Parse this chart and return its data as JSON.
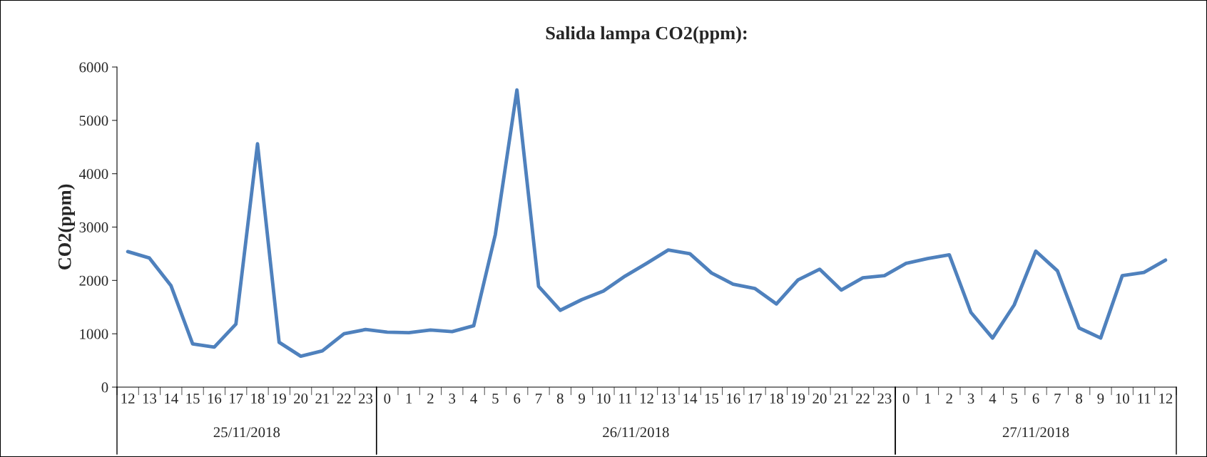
{
  "chart_data": {
    "type": "line",
    "title": "Salida lampa CO2(ppm):",
    "ylabel": "CO2(ppm)",
    "categories": [
      "12",
      "13",
      "14",
      "15",
      "16",
      "17",
      "18",
      "19",
      "20",
      "21",
      "22",
      "23",
      "0",
      "1",
      "2",
      "3",
      "4",
      "5",
      "6",
      "7",
      "8",
      "9",
      "10",
      "11",
      "12",
      "13",
      "14",
      "15",
      "16",
      "17",
      "18",
      "19",
      "20",
      "21",
      "22",
      "23",
      "0",
      "1",
      "2",
      "3",
      "4",
      "5",
      "6",
      "7",
      "8",
      "9",
      "10",
      "11",
      "12"
    ],
    "series": [
      {
        "color": "#4f81bd",
        "values": [
          2540,
          2420,
          1900,
          810,
          750,
          1180,
          4560,
          840,
          580,
          680,
          1000,
          1080,
          1030,
          1020,
          1070,
          1040,
          1150,
          2860,
          5570,
          1890,
          1440,
          1640,
          1800,
          2080,
          2320,
          2570,
          2500,
          2140,
          1930,
          1850,
          1560,
          2010,
          2210,
          1820,
          2050,
          2090,
          2320,
          2410,
          2480,
          1400,
          920,
          1540,
          2550,
          2180,
          1110,
          920,
          2090,
          2150,
          2380
        ]
      }
    ],
    "annotations": [
      "25/11/2018",
      "26/11/2018",
      "27/11/2018"
    ],
    "ylim": [
      0,
      6000
    ],
    "yticks": [
      0,
      1000,
      2000,
      3000,
      4000,
      5000,
      6000
    ],
    "grid": false,
    "marker": "none",
    "line_style": "solid"
  }
}
